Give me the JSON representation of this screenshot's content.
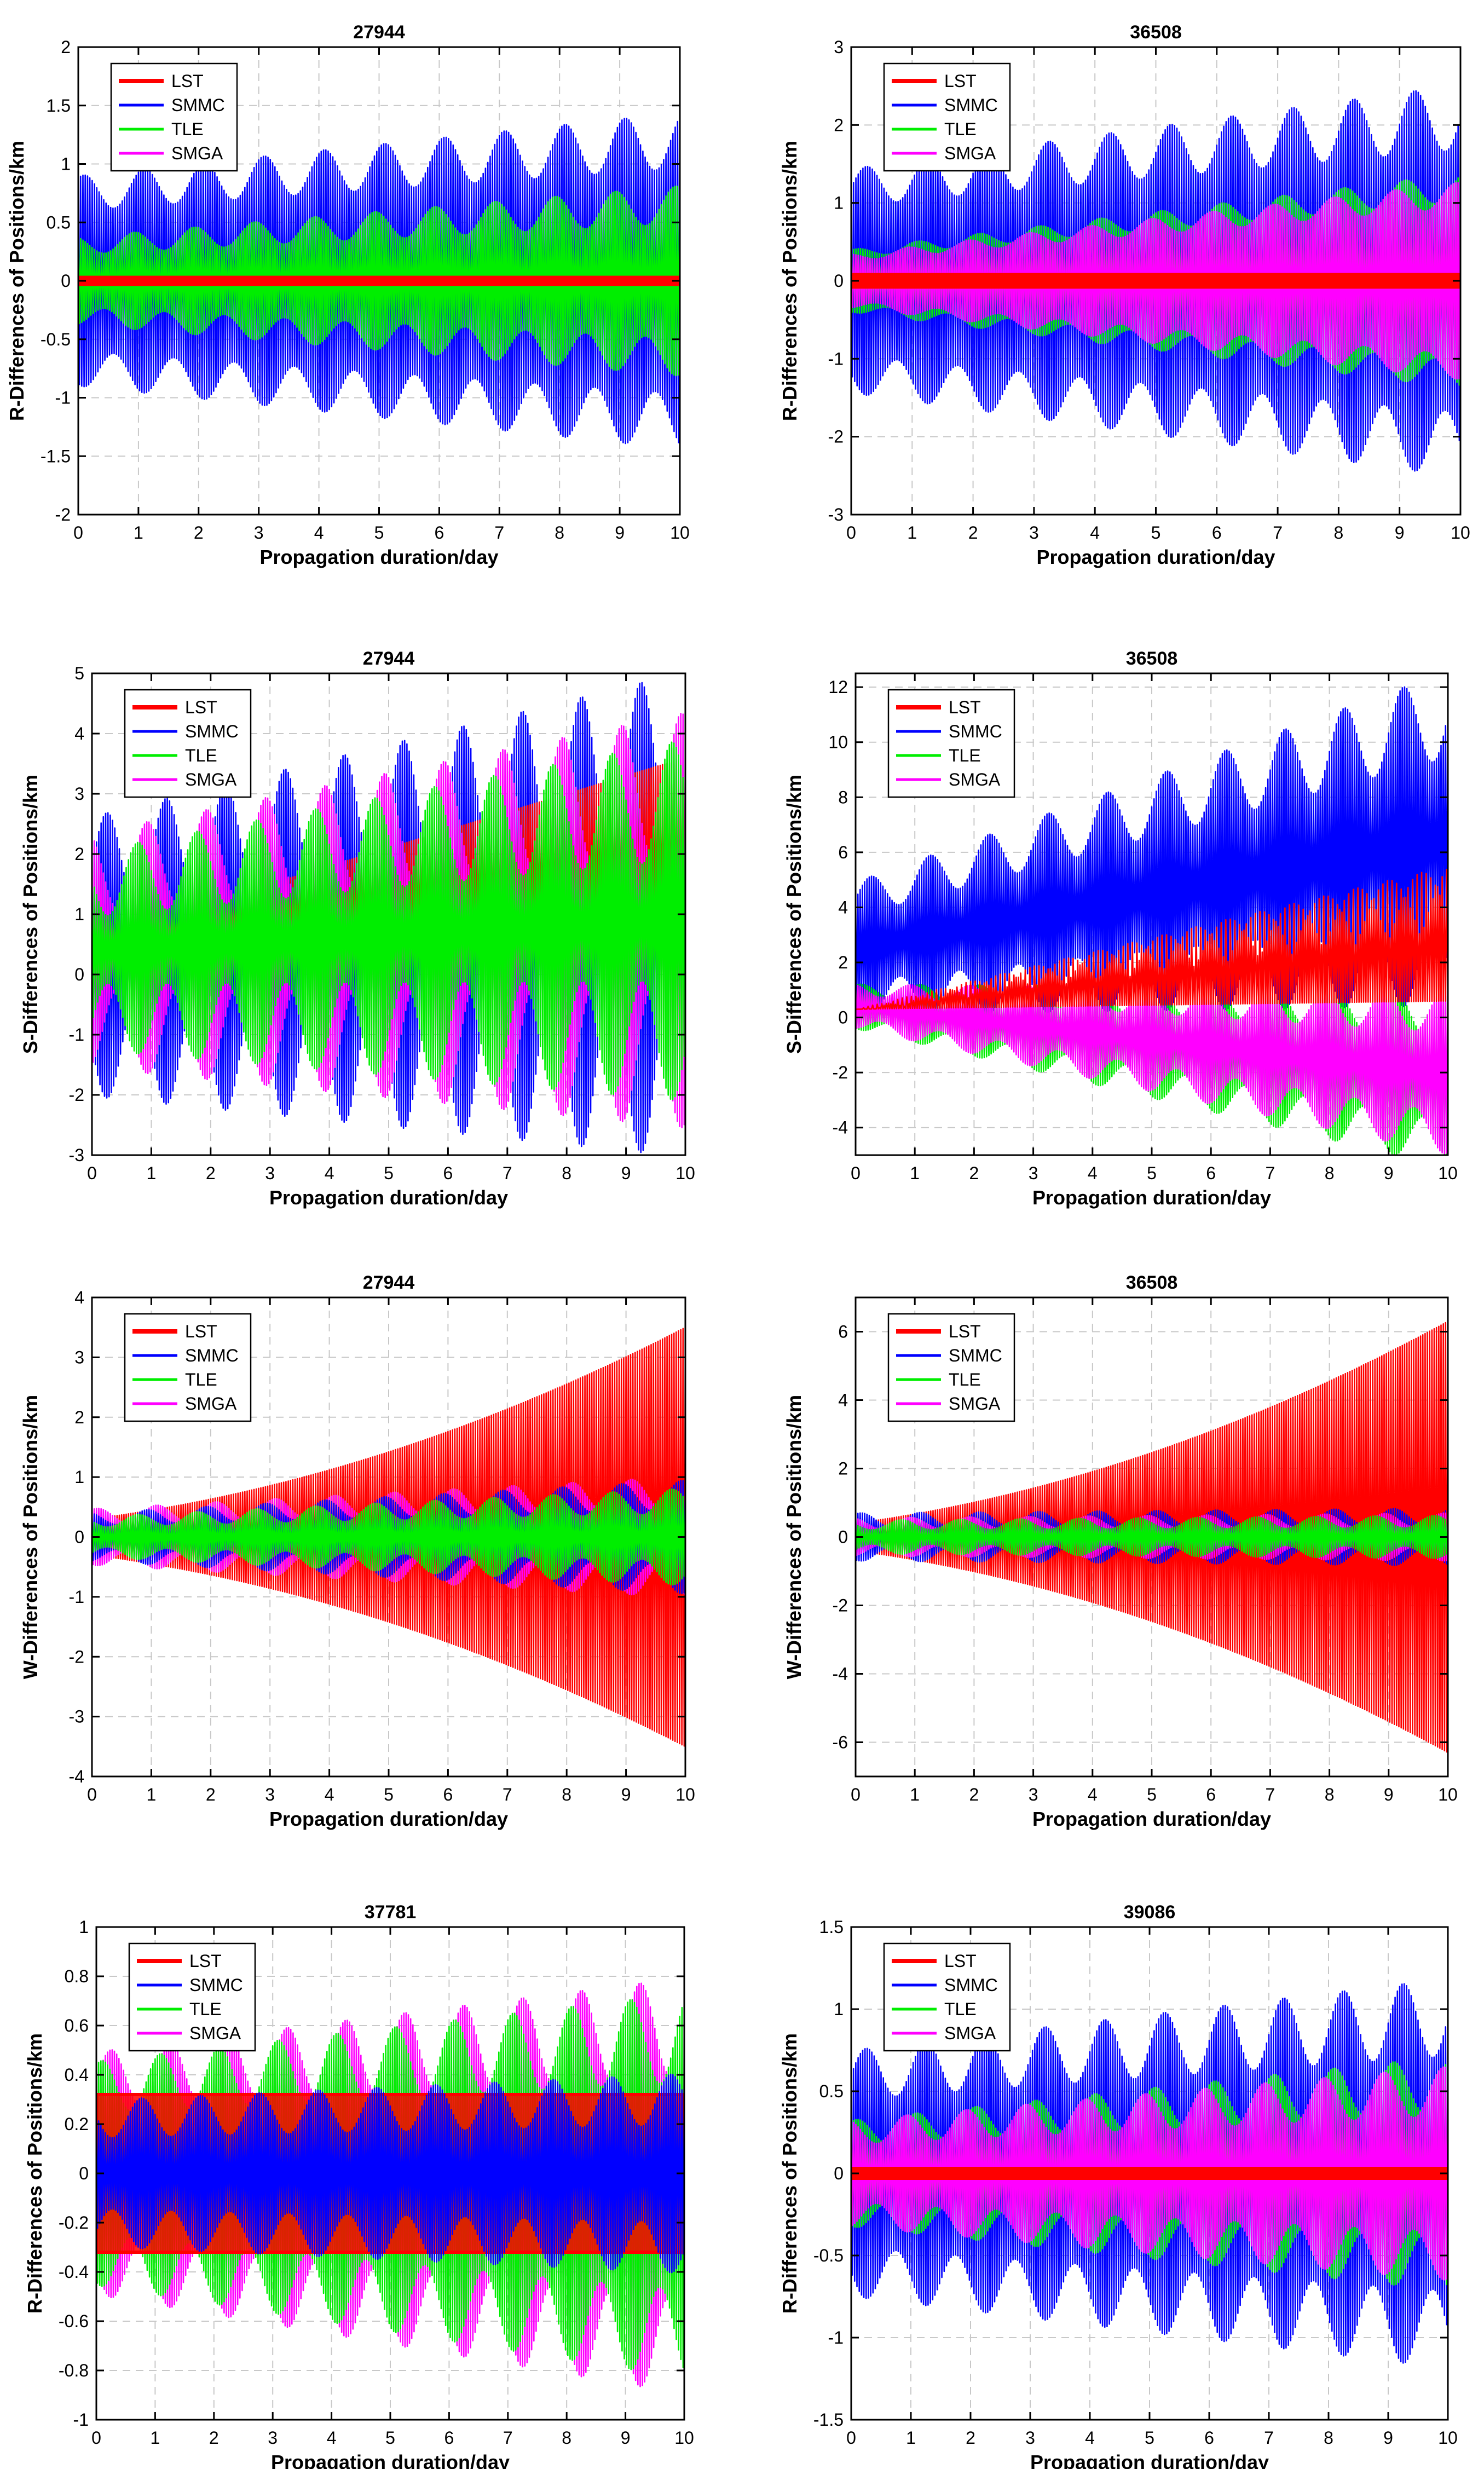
{
  "figure": {
    "description_free": true,
    "series_style": {
      "LST": "#ff0000",
      "SMMC": "#0000ff",
      "TLE": "#00ee00",
      "SMGA": "#ff00ff"
    }
  },
  "chart_data": [
    {
      "type": "line",
      "title": "27944",
      "xlabel": "Propagation duration/day",
      "ylabel": "R-Differences of Positions/km",
      "xlim": [
        0,
        10
      ],
      "ylim": [
        -2,
        2
      ],
      "xticks": [
        0,
        1,
        2,
        3,
        4,
        5,
        6,
        7,
        8,
        9,
        10
      ],
      "yticks": [
        -2,
        -1.5,
        -1,
        -0.5,
        0,
        0.5,
        1,
        1.5,
        2
      ],
      "ytick_labels": [
        "-2",
        "-1.5",
        "-1",
        "-0.5",
        "0",
        "0.5",
        "1",
        "1.5",
        "2"
      ],
      "legend": [
        "LST",
        "SMMC",
        "TLE",
        "SMGA"
      ],
      "legend_position": "top-left",
      "series": [
        {
          "name": "SMGA",
          "color": "#ff00ff",
          "kind": "osc",
          "center": 0,
          "amp_start": 0.3,
          "amp_end": 0.7,
          "mod": 0.25,
          "mod_cycles": 10
        },
        {
          "name": "SMMC",
          "color": "#0000ff",
          "kind": "osc",
          "center": 0,
          "amp_start": 0.75,
          "amp_end": 1.2,
          "mod": 0.2,
          "mod_cycles": 10
        },
        {
          "name": "TLE",
          "color": "#00ee00",
          "kind": "osc",
          "center": 0,
          "amp_start": 0.3,
          "amp_end": 0.65,
          "mod": 0.25,
          "mod_cycles": 10
        },
        {
          "name": "LST",
          "color": "#ff0000",
          "kind": "band",
          "center": 0,
          "amp_start": 0.03,
          "amp_end": 0.03
        }
      ]
    },
    {
      "type": "line",
      "title": "36508",
      "xlabel": "Propagation duration/day",
      "ylabel": "R-Differences of Positions/km",
      "xlim": [
        0,
        10
      ],
      "ylim": [
        -3,
        3
      ],
      "xticks": [
        0,
        1,
        2,
        3,
        4,
        5,
        6,
        7,
        8,
        9,
        10
      ],
      "yticks": [
        -3,
        -2,
        -1,
        0,
        1,
        2,
        3
      ],
      "ytick_labels": [
        "-3",
        "-2",
        "-1",
        "0",
        "1",
        "2",
        "3"
      ],
      "legend": [
        "LST",
        "SMMC",
        "TLE",
        "SMGA"
      ],
      "legend_position": "top-left",
      "series": [
        {
          "name": "SMMC",
          "color": "#0000ff",
          "kind": "osc",
          "center": 0,
          "amp_start": 1.2,
          "amp_end": 2.1,
          "mod": 0.2,
          "mod_cycles": 10
        },
        {
          "name": "TLE",
          "color": "#00ee00",
          "kind": "osc",
          "center": 0,
          "amp_start": 0.35,
          "amp_end": 1.2,
          "mod": 0.15,
          "mod_cycles": 10
        },
        {
          "name": "SMGA",
          "color": "#ff00ff",
          "kind": "osc",
          "center": 0,
          "amp_start": 0.3,
          "amp_end": 1.1,
          "mod": 0.15,
          "mod_cycles": 10
        },
        {
          "name": "LST",
          "color": "#ff0000",
          "kind": "band",
          "center": 0,
          "amp_start": 0.08,
          "amp_end": 0.08
        }
      ]
    },
    {
      "type": "line",
      "title": "27944",
      "xlabel": "Propagation duration/day",
      "ylabel": "S-Differences of Positions/km",
      "xlim": [
        0,
        10
      ],
      "ylim": [
        -3,
        5
      ],
      "xticks": [
        0,
        1,
        2,
        3,
        4,
        5,
        6,
        7,
        8,
        9,
        10
      ],
      "yticks": [
        -3,
        -2,
        -1,
        0,
        1,
        2,
        3,
        4,
        5
      ],
      "ytick_labels": [
        "-3",
        "-2",
        "-1",
        "0",
        "1",
        "2",
        "3",
        "4",
        "5"
      ],
      "legend": [
        "LST",
        "SMMC",
        "TLE",
        "SMGA"
      ],
      "legend_position": "top-left",
      "series": [
        {
          "name": "SMMC",
          "color": "#0000ff",
          "kind": "osc",
          "center_start": 0.3,
          "center_end": 1.0,
          "amp_start": 1.5,
          "amp_end": 2.6,
          "mod": 0.55,
          "mod_cycles": 10
        },
        {
          "name": "LST",
          "color": "#ff0000",
          "kind": "osc",
          "center_start": 0.5,
          "center_end": 1.8,
          "amp_start": 0.1,
          "amp_end": 1.8,
          "mod": 0,
          "mod_cycles": 10
        },
        {
          "name": "SMGA",
          "color": "#ff00ff",
          "kind": "osc",
          "center_start": 0.4,
          "center_end": 0.9,
          "amp_start": 1.3,
          "amp_end": 2.3,
          "mod": 0.5,
          "mod_cycles": 10
        },
        {
          "name": "TLE",
          "color": "#00ee00",
          "kind": "osc",
          "center_start": 0.4,
          "center_end": 0.9,
          "amp_start": 1.1,
          "amp_end": 2.0,
          "mod": 0.5,
          "mod_cycles": 10
        }
      ]
    },
    {
      "type": "line",
      "title": "36508",
      "xlabel": "Propagation duration/day",
      "ylabel": "S-Differences of Positions/km",
      "xlim": [
        0,
        10
      ],
      "ylim": [
        -5,
        12.5
      ],
      "xticks": [
        0,
        1,
        2,
        3,
        4,
        5,
        6,
        7,
        8,
        9,
        10
      ],
      "yticks": [
        -4,
        -2,
        0,
        2,
        4,
        6,
        8,
        10,
        12
      ],
      "ytick_labels": [
        "-4",
        "-2",
        "0",
        "2",
        "4",
        "6",
        "8",
        "10",
        "12"
      ],
      "legend": [
        "LST",
        "SMMC",
        "TLE",
        "SMGA"
      ],
      "legend_position": "top-left",
      "series": [
        {
          "name": "SMMC",
          "color": "#0000ff",
          "kind": "osc",
          "center_start": 2.5,
          "center_end": 6.5,
          "amp_start": 1.8,
          "amp_end": 4.5,
          "mod": 0.35,
          "mod_cycles": 10
        },
        {
          "name": "TLE",
          "color": "#00ee00",
          "kind": "osc",
          "center_start": 0.4,
          "center_end": -2.2,
          "amp_start": 0.6,
          "amp_end": 2.4,
          "mod": 0.35,
          "mod_cycles": 10
        },
        {
          "name": "SMGA",
          "color": "#ff00ff",
          "kind": "osc",
          "center_start": 0.4,
          "center_end": -2.0,
          "amp_start": 0.6,
          "amp_end": 2.2,
          "mod": 0.35,
          "mod_cycles": 10
        },
        {
          "name": "LST",
          "color": "#ff0000",
          "kind": "spread",
          "base_start": 0.3,
          "base_end": 0.6,
          "top_start": 0.3,
          "top_end": 5.5
        }
      ]
    },
    {
      "type": "line",
      "title": "27944",
      "xlabel": "Propagation duration/day",
      "ylabel": "W-Differences of Positions/km",
      "xlim": [
        0,
        10
      ],
      "ylim": [
        -4,
        4
      ],
      "xticks": [
        0,
        1,
        2,
        3,
        4,
        5,
        6,
        7,
        8,
        9,
        10
      ],
      "yticks": [
        -4,
        -3,
        -2,
        -1,
        0,
        1,
        2,
        3,
        4
      ],
      "ytick_labels": [
        "-4",
        "-3",
        "-2",
        "-1",
        "0",
        "1",
        "2",
        "3",
        "4"
      ],
      "legend": [
        "LST",
        "SMMC",
        "TLE",
        "SMGA"
      ],
      "legend_position": "top-left",
      "series": [
        {
          "name": "LST",
          "color": "#ff0000",
          "kind": "osc",
          "center": 0,
          "amp_start": 0.3,
          "amp_end": 3.5,
          "mod": 0,
          "mod_cycles": 10,
          "growth": "quadratic"
        },
        {
          "name": "SMGA",
          "color": "#ff00ff",
          "kind": "osc",
          "center": 0,
          "amp_start": 0.35,
          "amp_end": 0.75,
          "mod": 0.35,
          "mod_cycles": 10
        },
        {
          "name": "SMMC",
          "color": "#0000ff",
          "kind": "osc",
          "center": 0,
          "amp_start": 0.3,
          "amp_end": 0.7,
          "mod": 0.35,
          "mod_cycles": 10
        },
        {
          "name": "TLE",
          "color": "#00ee00",
          "kind": "osc",
          "center": 0,
          "amp_start": 0.25,
          "amp_end": 0.6,
          "mod": 0.35,
          "mod_cycles": 10
        }
      ]
    },
    {
      "type": "line",
      "title": "36508",
      "xlabel": "Propagation duration/day",
      "ylabel": "W-Differences of Positions/km",
      "xlim": [
        0,
        10
      ],
      "ylim": [
        -7,
        7
      ],
      "xticks": [
        0,
        1,
        2,
        3,
        4,
        5,
        6,
        7,
        8,
        9,
        10
      ],
      "yticks": [
        -6,
        -4,
        -2,
        0,
        2,
        4,
        6
      ],
      "ytick_labels": [
        "-6",
        "-4",
        "-2",
        "0",
        "2",
        "4",
        "6"
      ],
      "legend": [
        "LST",
        "SMMC",
        "TLE",
        "SMGA"
      ],
      "legend_position": "top-left",
      "series": [
        {
          "name": "LST",
          "color": "#ff0000",
          "kind": "osc",
          "center": 0,
          "amp_start": 0.4,
          "amp_end": 6.3,
          "mod": 0,
          "mod_cycles": 10,
          "growth": "quadratic"
        },
        {
          "name": "SMMC",
          "color": "#0000ff",
          "kind": "osc",
          "center": 0,
          "amp_start": 0.5,
          "amp_end": 0.6,
          "mod": 0.4,
          "mod_cycles": 10
        },
        {
          "name": "SMGA",
          "color": "#ff00ff",
          "kind": "osc",
          "center": 0,
          "amp_start": 0.4,
          "amp_end": 0.5,
          "mod": 0.4,
          "mod_cycles": 10
        },
        {
          "name": "TLE",
          "color": "#00ee00",
          "kind": "osc",
          "center": 0,
          "amp_start": 0.35,
          "amp_end": 0.45,
          "mod": 0.4,
          "mod_cycles": 10
        }
      ]
    },
    {
      "type": "line",
      "title": "37781",
      "xlabel": "Propagation duration/day",
      "ylabel": "R-Differences of Positions/km",
      "xlim": [
        0,
        10
      ],
      "ylim": [
        -1,
        1
      ],
      "xticks": [
        0,
        1,
        2,
        3,
        4,
        5,
        6,
        7,
        8,
        9,
        10
      ],
      "yticks": [
        -1,
        -0.8,
        -0.6,
        -0.4,
        -0.2,
        0,
        0.2,
        0.4,
        0.6,
        0.8,
        1
      ],
      "ytick_labels": [
        "-1",
        "-0.8",
        "-0.6",
        "-0.4",
        "-0.2",
        "0",
        "0.2",
        "0.4",
        "0.6",
        "0.8",
        "1"
      ],
      "legend": [
        "LST",
        "SMMC",
        "TLE",
        "SMGA"
      ],
      "legend_position": "top-left",
      "series": [
        {
          "name": "SMGA",
          "color": "#ff00ff",
          "kind": "osc",
          "center_start": 0.0,
          "center_end": -0.05,
          "amp_start": 0.38,
          "amp_end": 0.65,
          "mod": 0.3,
          "mod_cycles": 10
        },
        {
          "name": "TLE",
          "color": "#00ee00",
          "kind": "osc",
          "center_start": 0.0,
          "center_end": -0.05,
          "amp_start": 0.35,
          "amp_end": 0.6,
          "mod": 0.3,
          "mod_cycles": 10
        },
        {
          "name": "LST",
          "color": "#ff0000",
          "kind": "band",
          "center": 0,
          "amp_start": 0.32,
          "amp_end": 0.32,
          "fill_opacity": 0.85
        },
        {
          "name": "SMMC",
          "color": "#0000ff",
          "kind": "osc",
          "center": 0,
          "amp_start": 0.22,
          "amp_end": 0.3,
          "mod": 0.35,
          "mod_cycles": 10
        }
      ]
    },
    {
      "type": "line",
      "title": "39086",
      "xlabel": "Propagation duration/day",
      "ylabel": "R-Differences of Positions/km",
      "xlim": [
        0,
        10
      ],
      "ylim": [
        -1.5,
        1.5
      ],
      "xticks": [
        0,
        1,
        2,
        3,
        4,
        5,
        6,
        7,
        8,
        9,
        10
      ],
      "yticks": [
        -1.5,
        -1,
        -0.5,
        0,
        0.5,
        1,
        1.5
      ],
      "ytick_labels": [
        "-1.5",
        "-1",
        "-0.5",
        "0",
        "0.5",
        "1",
        "1.5"
      ],
      "legend": [
        "LST",
        "SMMC",
        "TLE",
        "SMGA"
      ],
      "legend_position": "top-left",
      "series": [
        {
          "name": "SMMC",
          "color": "#0000ff",
          "kind": "osc",
          "center": 0,
          "amp_start": 0.6,
          "amp_end": 0.95,
          "mod": 0.25,
          "mod_cycles": 10
        },
        {
          "name": "TLE",
          "color": "#00ee00",
          "kind": "osc",
          "center": 0,
          "amp_start": 0.25,
          "amp_end": 0.55,
          "mod": 0.3,
          "mod_cycles": 10
        },
        {
          "name": "SMGA",
          "color": "#ff00ff",
          "kind": "osc",
          "center": 0,
          "amp_start": 0.25,
          "amp_end": 0.5,
          "mod": 0.3,
          "mod_cycles": 10
        },
        {
          "name": "LST",
          "color": "#ff0000",
          "kind": "band",
          "center": 0,
          "amp_start": 0.03,
          "amp_end": 0.03
        }
      ]
    }
  ]
}
